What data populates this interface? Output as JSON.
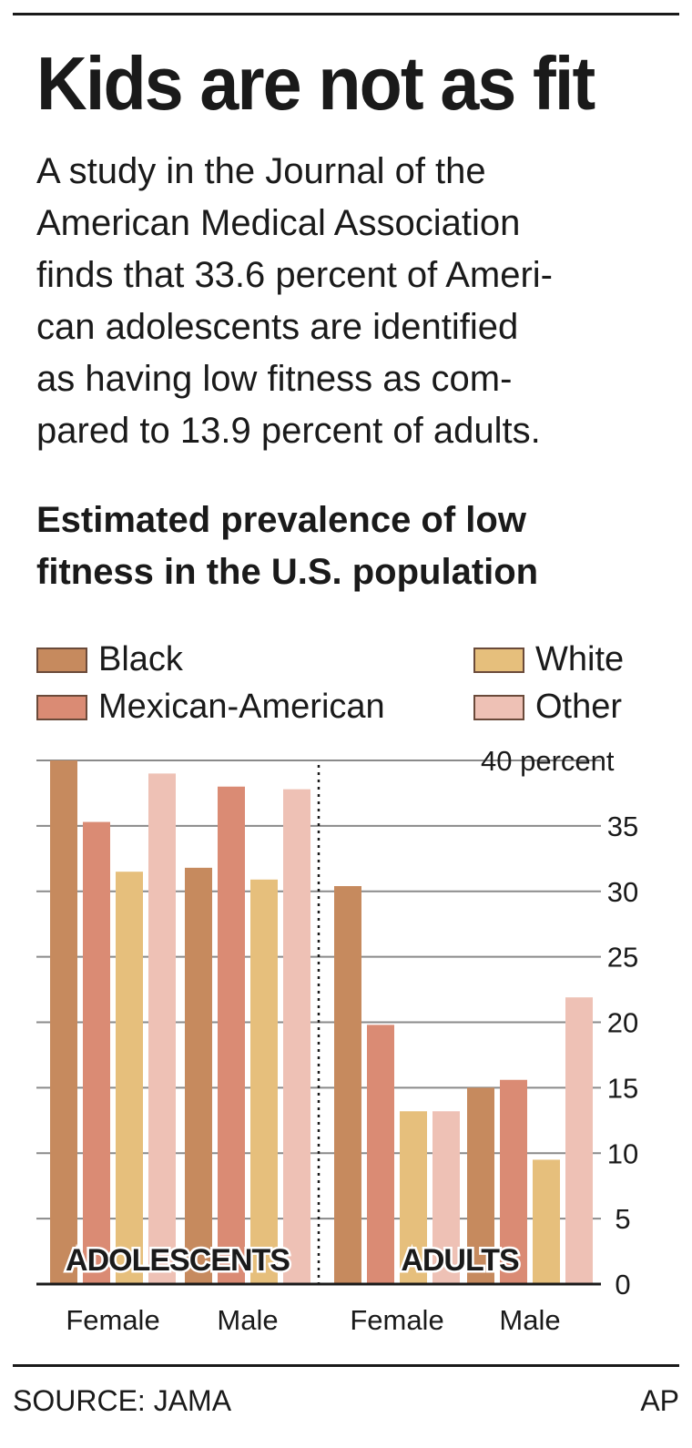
{
  "header": {
    "title": "Kids are not as fit",
    "description": "A study in the Journal of the\nAmerican Medical Association\nfinds that 33.6 percent of Ameri-\ncan adolescents are identified\nas having low fitness as com-\npared to 13.9 percent of adults."
  },
  "chart_data": {
    "type": "bar",
    "title": "Estimated prevalence of low\nfitness in the U.S. population",
    "groups": [
      "ADOLESCENTS",
      "ADULTS"
    ],
    "categories": [
      "Female",
      "Male",
      "Female",
      "Male"
    ],
    "series": [
      {
        "name": "Black",
        "color": "#c68a5e",
        "values": [
          40,
          31.8,
          30.4,
          15
        ]
      },
      {
        "name": "Mexican-American",
        "color": "#da8b74",
        "values": [
          35.3,
          38,
          19.8,
          15.6
        ]
      },
      {
        "name": "White",
        "color": "#e6bf7c",
        "values": [
          31.5,
          30.9,
          13.2,
          9.5
        ]
      },
      {
        "name": "Other",
        "color": "#eec1b5",
        "values": [
          39,
          37.8,
          13.2,
          21.9
        ]
      }
    ],
    "yaxis": {
      "range": [
        0,
        40
      ],
      "ticks": [
        0,
        5,
        10,
        15,
        20,
        25,
        30,
        35,
        40
      ],
      "top_label": "40 percent",
      "position": "right"
    },
    "grid": true,
    "legend": "top"
  },
  "footer": {
    "source": "SOURCE: JAMA",
    "credit": "AP"
  }
}
